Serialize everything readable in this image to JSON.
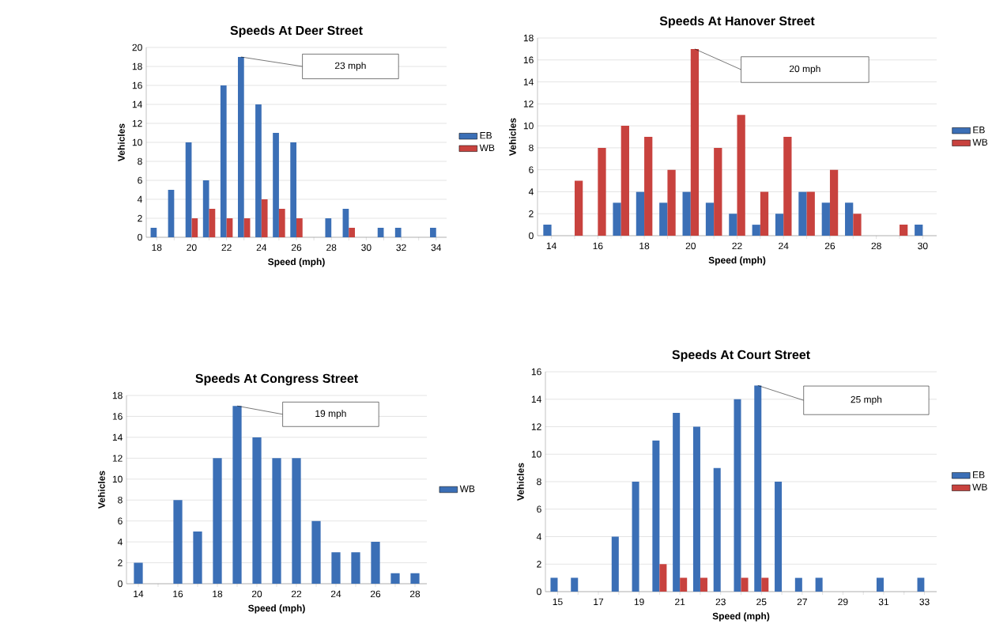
{
  "chart_data": [
    {
      "type": "bar",
      "title": "Speeds At Deer Street",
      "xlabel": "Speed (mph)",
      "ylabel": "Vehicles",
      "categories": [
        "18",
        null,
        "20",
        null,
        "22",
        null,
        "24",
        null,
        "26",
        null,
        "28",
        null,
        "30",
        null,
        "32",
        null,
        "34"
      ],
      "series": [
        {
          "name": "EB",
          "color": "#3b6fb6",
          "values": [
            1,
            5,
            10,
            6,
            16,
            19,
            14,
            11,
            10,
            null,
            2,
            3,
            null,
            1,
            1,
            null,
            1
          ]
        },
        {
          "name": "WB",
          "color": "#c8423e",
          "values": [
            null,
            null,
            2,
            3,
            2,
            2,
            4,
            3,
            2,
            null,
            null,
            1,
            null,
            null,
            null,
            null,
            null
          ]
        }
      ],
      "ylim": [
        0,
        20
      ],
      "yticks": [
        0,
        2,
        4,
        6,
        8,
        10,
        12,
        14,
        16,
        18,
        20
      ],
      "grid": "y",
      "legend": "right",
      "annotations": [
        "23 mph"
      ]
    },
    {
      "type": "bar",
      "title": "Speeds At Hanover Street",
      "xlabel": "Speed (mph)",
      "ylabel": "Vehicles",
      "categories": [
        "14",
        null,
        "16",
        null,
        "18",
        null,
        "20",
        null,
        "22",
        null,
        "24",
        null,
        "26",
        null,
        "28",
        null,
        "30"
      ],
      "series": [
        {
          "name": "EB",
          "color": "#3b6fb6",
          "values": [
            1,
            null,
            null,
            3,
            4,
            3,
            4,
            3,
            2,
            1,
            2,
            4,
            3,
            3,
            null,
            null,
            1
          ]
        },
        {
          "name": "WB",
          "color": "#c8423e",
          "values": [
            null,
            5,
            8,
            10,
            9,
            6,
            17,
            8,
            11,
            4,
            9,
            4,
            6,
            2,
            null,
            1,
            null
          ]
        }
      ],
      "ylim": [
        0,
        18
      ],
      "yticks": [
        0,
        2,
        4,
        6,
        8,
        10,
        12,
        14,
        16,
        18
      ],
      "grid": "y",
      "legend": "right",
      "annotations": [
        "20 mph"
      ]
    },
    {
      "type": "bar",
      "title": "Speeds At Congress Street",
      "xlabel": "Speed (mph)",
      "ylabel": "Vehicles",
      "categories": [
        "14",
        null,
        "16",
        null,
        "18",
        null,
        "20",
        null,
        "22",
        null,
        "24",
        null,
        "26",
        null,
        "28"
      ],
      "series": [
        {
          "name": "WB",
          "color": "#3b6fb6",
          "values": [
            2,
            null,
            8,
            5,
            12,
            17,
            14,
            12,
            12,
            6,
            3,
            3,
            4,
            1,
            1
          ]
        }
      ],
      "ylim": [
        0,
        18
      ],
      "yticks": [
        0,
        2,
        4,
        6,
        8,
        10,
        12,
        14,
        16,
        18
      ],
      "grid": "y",
      "legend": "right",
      "annotations": [
        "19 mph"
      ]
    },
    {
      "type": "bar",
      "title": "Speeds At Court Street",
      "xlabel": "Speed (mph)",
      "ylabel": "Vehicles",
      "categories": [
        "15",
        null,
        "17",
        null,
        "19",
        null,
        "21",
        null,
        "23",
        null,
        "25",
        null,
        "27",
        null,
        "29",
        null,
        "31",
        null,
        "33"
      ],
      "series": [
        {
          "name": "EB",
          "color": "#3b6fb6",
          "values": [
            1,
            1,
            null,
            4,
            8,
            11,
            13,
            12,
            9,
            14,
            15,
            8,
            1,
            1,
            null,
            null,
            1,
            null,
            1
          ]
        },
        {
          "name": "WB",
          "color": "#c8423e",
          "values": [
            null,
            null,
            null,
            null,
            null,
            2,
            1,
            1,
            null,
            1,
            1,
            null,
            null,
            null,
            null,
            null,
            null,
            null,
            null
          ]
        }
      ],
      "ylim": [
        0,
        16
      ],
      "yticks": [
        0,
        2,
        4,
        6,
        8,
        10,
        12,
        14,
        16
      ],
      "grid": "y",
      "legend": "right",
      "annotations": [
        "25 mph"
      ]
    }
  ]
}
